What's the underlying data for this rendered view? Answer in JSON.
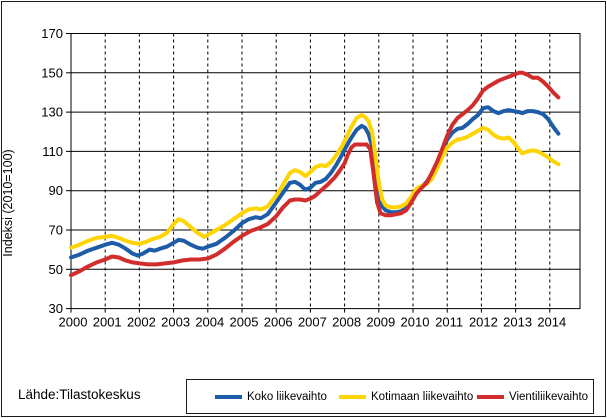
{
  "source_label": "Lähde:Tilastokeskus",
  "chart_data": {
    "type": "line",
    "title": "",
    "xlabel": "",
    "ylabel": "Indeksi (2010=100)",
    "ylim": [
      30,
      170
    ],
    "xlim": [
      2000,
      2014.85
    ],
    "y_ticks": [
      30,
      50,
      70,
      90,
      110,
      130,
      150,
      170
    ],
    "x_ticks": [
      2000,
      2001,
      2002,
      2003,
      2004,
      2005,
      2006,
      2007,
      2008,
      2009,
      2010,
      2011,
      2012,
      2013,
      2014
    ],
    "grid": {
      "horizontal": "solid",
      "vertical": "dashed"
    },
    "legend_position": "bottom",
    "series": [
      {
        "name": "Koko liikevaihto",
        "color": "#1d5ca8",
        "points": [
          [
            2000.0,
            56
          ],
          [
            2000.25,
            57.5
          ],
          [
            2000.5,
            59.5
          ],
          [
            2000.75,
            61
          ],
          [
            2001.0,
            62.5
          ],
          [
            2001.2,
            63.5
          ],
          [
            2001.4,
            62.5
          ],
          [
            2001.6,
            60.5
          ],
          [
            2001.8,
            58
          ],
          [
            2001.95,
            57
          ],
          [
            2002.1,
            58
          ],
          [
            2002.3,
            60
          ],
          [
            2002.45,
            59.5
          ],
          [
            2002.6,
            60.5
          ],
          [
            2002.8,
            61.5
          ],
          [
            2003.0,
            63.5
          ],
          [
            2003.15,
            65
          ],
          [
            2003.3,
            64.5
          ],
          [
            2003.5,
            62.5
          ],
          [
            2003.7,
            61
          ],
          [
            2003.85,
            60.5
          ],
          [
            2004.0,
            61.5
          ],
          [
            2004.25,
            63
          ],
          [
            2004.5,
            66
          ],
          [
            2004.75,
            69.5
          ],
          [
            2005.0,
            73.5
          ],
          [
            2005.2,
            75.5
          ],
          [
            2005.4,
            76.5
          ],
          [
            2005.55,
            76
          ],
          [
            2005.75,
            78
          ],
          [
            2006.0,
            84
          ],
          [
            2006.2,
            89
          ],
          [
            2006.4,
            94
          ],
          [
            2006.55,
            94.5
          ],
          [
            2006.7,
            93
          ],
          [
            2006.85,
            90.5
          ],
          [
            2007.0,
            91.5
          ],
          [
            2007.15,
            94
          ],
          [
            2007.3,
            94.5
          ],
          [
            2007.45,
            96
          ],
          [
            2007.6,
            99
          ],
          [
            2007.75,
            103
          ],
          [
            2007.9,
            107.5
          ],
          [
            2008.05,
            112.5
          ],
          [
            2008.2,
            117
          ],
          [
            2008.35,
            121
          ],
          [
            2008.5,
            123
          ],
          [
            2008.6,
            122
          ],
          [
            2008.7,
            119
          ],
          [
            2008.8,
            113
          ],
          [
            2008.9,
            101
          ],
          [
            2009.0,
            88
          ],
          [
            2009.1,
            82
          ],
          [
            2009.2,
            80
          ],
          [
            2009.35,
            79
          ],
          [
            2009.5,
            79
          ],
          [
            2009.65,
            79.5
          ],
          [
            2009.8,
            81
          ],
          [
            2009.95,
            85
          ],
          [
            2010.1,
            89
          ],
          [
            2010.25,
            92
          ],
          [
            2010.4,
            94.5
          ],
          [
            2010.55,
            98.5
          ],
          [
            2010.7,
            104
          ],
          [
            2010.85,
            110
          ],
          [
            2011.0,
            116
          ],
          [
            2011.15,
            119.5
          ],
          [
            2011.3,
            121.5
          ],
          [
            2011.45,
            122
          ],
          [
            2011.6,
            124
          ],
          [
            2011.75,
            126.5
          ],
          [
            2011.9,
            128.5
          ],
          [
            2012.05,
            132
          ],
          [
            2012.2,
            132.5
          ],
          [
            2012.35,
            130.5
          ],
          [
            2012.5,
            129.5
          ],
          [
            2012.65,
            130.5
          ],
          [
            2012.8,
            131
          ],
          [
            2012.95,
            130.5
          ],
          [
            2013.1,
            130
          ],
          [
            2013.2,
            129.5
          ],
          [
            2013.35,
            130.5
          ],
          [
            2013.5,
            130.5
          ],
          [
            2013.65,
            130
          ],
          [
            2013.8,
            129
          ],
          [
            2013.95,
            126.5
          ],
          [
            2014.1,
            122.5
          ],
          [
            2014.25,
            119
          ]
        ]
      },
      {
        "name": "Kotimaan liikevaihto",
        "color": "#fed403",
        "points": [
          [
            2000.0,
            61
          ],
          [
            2000.25,
            62.5
          ],
          [
            2000.5,
            64.5
          ],
          [
            2000.75,
            66
          ],
          [
            2001.0,
            66.5
          ],
          [
            2001.2,
            67
          ],
          [
            2001.4,
            66
          ],
          [
            2001.6,
            64.5
          ],
          [
            2001.8,
            63.5
          ],
          [
            2002.0,
            63
          ],
          [
            2002.2,
            64
          ],
          [
            2002.4,
            65.5
          ],
          [
            2002.6,
            66.5
          ],
          [
            2002.8,
            68.5
          ],
          [
            2003.0,
            73
          ],
          [
            2003.15,
            75.5
          ],
          [
            2003.3,
            74.5
          ],
          [
            2003.5,
            71.5
          ],
          [
            2003.7,
            68.5
          ],
          [
            2003.9,
            66.5
          ],
          [
            2004.0,
            67.5
          ],
          [
            2004.25,
            70
          ],
          [
            2004.5,
            72.5
          ],
          [
            2004.75,
            75.5
          ],
          [
            2005.0,
            78.5
          ],
          [
            2005.2,
            80.5
          ],
          [
            2005.4,
            81
          ],
          [
            2005.55,
            80.5
          ],
          [
            2005.75,
            82
          ],
          [
            2006.0,
            87.5
          ],
          [
            2006.2,
            93
          ],
          [
            2006.4,
            99
          ],
          [
            2006.55,
            100.5
          ],
          [
            2006.7,
            99.5
          ],
          [
            2006.85,
            97.5
          ],
          [
            2007.0,
            99.5
          ],
          [
            2007.15,
            102
          ],
          [
            2007.3,
            103
          ],
          [
            2007.45,
            102.5
          ],
          [
            2007.6,
            104.5
          ],
          [
            2007.75,
            108
          ],
          [
            2007.9,
            112
          ],
          [
            2008.05,
            117
          ],
          [
            2008.2,
            122.5
          ],
          [
            2008.35,
            127
          ],
          [
            2008.5,
            128.5
          ],
          [
            2008.6,
            127.5
          ],
          [
            2008.7,
            125.5
          ],
          [
            2008.8,
            120
          ],
          [
            2008.9,
            108
          ],
          [
            2009.0,
            94
          ],
          [
            2009.1,
            85.5
          ],
          [
            2009.2,
            82.5
          ],
          [
            2009.35,
            81.5
          ],
          [
            2009.5,
            81.5
          ],
          [
            2009.65,
            82
          ],
          [
            2009.8,
            83.5
          ],
          [
            2009.95,
            87
          ],
          [
            2010.1,
            91
          ],
          [
            2010.25,
            92.5
          ],
          [
            2010.4,
            93.5
          ],
          [
            2010.55,
            96
          ],
          [
            2010.7,
            101
          ],
          [
            2010.85,
            107
          ],
          [
            2011.0,
            112
          ],
          [
            2011.15,
            114.5
          ],
          [
            2011.3,
            116
          ],
          [
            2011.45,
            116.5
          ],
          [
            2011.6,
            117.5
          ],
          [
            2011.75,
            119
          ],
          [
            2011.9,
            120.5
          ],
          [
            2012.05,
            122
          ],
          [
            2012.2,
            121
          ],
          [
            2012.35,
            118.5
          ],
          [
            2012.5,
            117
          ],
          [
            2012.65,
            116.5
          ],
          [
            2012.8,
            117
          ],
          [
            2012.95,
            114.5
          ],
          [
            2013.1,
            111
          ],
          [
            2013.2,
            109
          ],
          [
            2013.35,
            110
          ],
          [
            2013.5,
            110.5
          ],
          [
            2013.65,
            110
          ],
          [
            2013.8,
            108.5
          ],
          [
            2013.95,
            107
          ],
          [
            2014.1,
            105
          ],
          [
            2014.25,
            103.5
          ]
        ]
      },
      {
        "name": "Vientiliikevaihto",
        "color": "#d22d2d",
        "points": [
          [
            2000.0,
            47
          ],
          [
            2000.25,
            49
          ],
          [
            2000.5,
            51.5
          ],
          [
            2000.75,
            53.5
          ],
          [
            2001.0,
            55
          ],
          [
            2001.2,
            56.5
          ],
          [
            2001.4,
            56
          ],
          [
            2001.6,
            54.5
          ],
          [
            2001.8,
            53.5
          ],
          [
            2002.0,
            53
          ],
          [
            2002.25,
            52.5
          ],
          [
            2002.5,
            52.5
          ],
          [
            2002.75,
            53
          ],
          [
            2003.0,
            53.5
          ],
          [
            2003.25,
            54.5
          ],
          [
            2003.5,
            55
          ],
          [
            2003.75,
            55
          ],
          [
            2004.0,
            55.5
          ],
          [
            2004.25,
            57.5
          ],
          [
            2004.5,
            60.5
          ],
          [
            2004.75,
            64
          ],
          [
            2005.0,
            67
          ],
          [
            2005.25,
            69.5
          ],
          [
            2005.5,
            71
          ],
          [
            2005.75,
            73
          ],
          [
            2006.0,
            77
          ],
          [
            2006.2,
            81.5
          ],
          [
            2006.4,
            85
          ],
          [
            2006.55,
            85.5
          ],
          [
            2006.7,
            85.5
          ],
          [
            2006.85,
            85
          ],
          [
            2007.0,
            86
          ],
          [
            2007.15,
            87.5
          ],
          [
            2007.3,
            90
          ],
          [
            2007.5,
            93
          ],
          [
            2007.7,
            96.5
          ],
          [
            2007.85,
            100
          ],
          [
            2008.0,
            104
          ],
          [
            2008.1,
            108.5
          ],
          [
            2008.2,
            112
          ],
          [
            2008.3,
            113.5
          ],
          [
            2008.5,
            113.5
          ],
          [
            2008.65,
            113.5
          ],
          [
            2008.75,
            111
          ],
          [
            2008.85,
            98
          ],
          [
            2008.95,
            84
          ],
          [
            2009.05,
            78.5
          ],
          [
            2009.2,
            77.5
          ],
          [
            2009.35,
            77.5
          ],
          [
            2009.5,
            78
          ],
          [
            2009.65,
            78.5
          ],
          [
            2009.8,
            80
          ],
          [
            2009.95,
            84
          ],
          [
            2010.1,
            88.5
          ],
          [
            2010.25,
            91.5
          ],
          [
            2010.4,
            94
          ],
          [
            2010.55,
            99
          ],
          [
            2010.7,
            104.5
          ],
          [
            2010.85,
            111
          ],
          [
            2011.0,
            118
          ],
          [
            2011.15,
            123.5
          ],
          [
            2011.3,
            127
          ],
          [
            2011.45,
            129
          ],
          [
            2011.6,
            131
          ],
          [
            2011.75,
            133.5
          ],
          [
            2011.9,
            137
          ],
          [
            2012.05,
            141
          ],
          [
            2012.2,
            143
          ],
          [
            2012.35,
            144.5
          ],
          [
            2012.5,
            146
          ],
          [
            2012.65,
            147
          ],
          [
            2012.8,
            148
          ],
          [
            2012.95,
            149
          ],
          [
            2013.1,
            150
          ],
          [
            2013.2,
            150
          ],
          [
            2013.35,
            149
          ],
          [
            2013.5,
            147.5
          ],
          [
            2013.65,
            147.5
          ],
          [
            2013.8,
            145.5
          ],
          [
            2013.95,
            143
          ],
          [
            2014.1,
            140
          ],
          [
            2014.25,
            137.5
          ]
        ]
      }
    ]
  }
}
